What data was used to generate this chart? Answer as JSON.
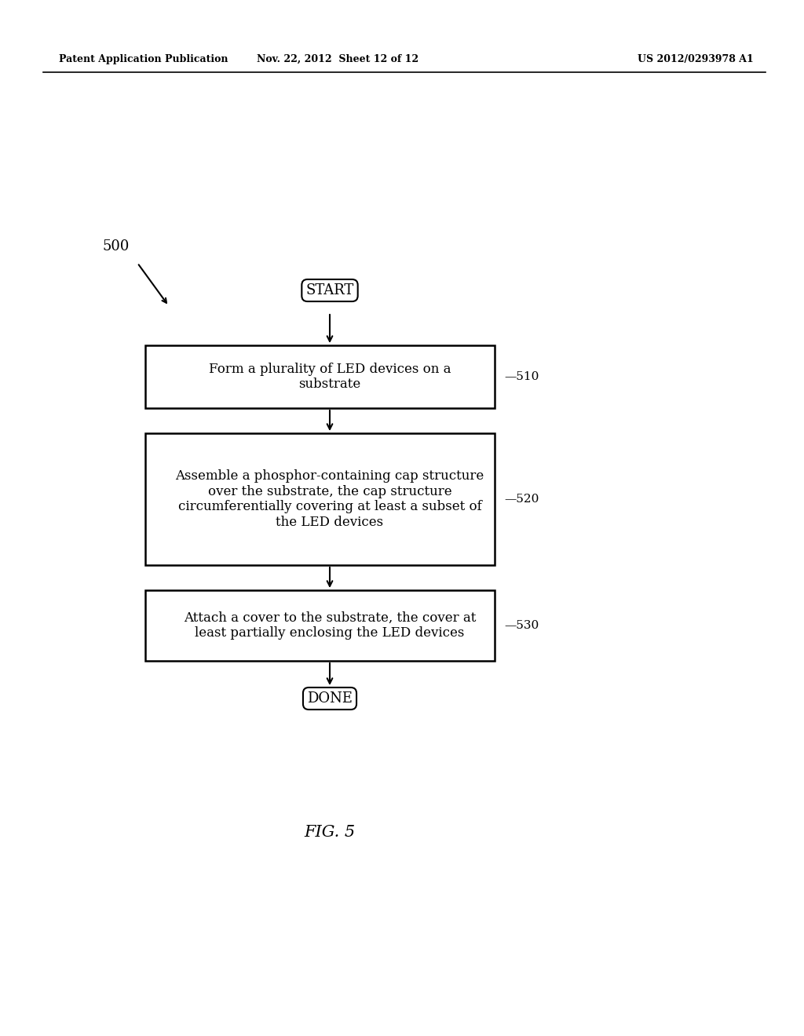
{
  "bg_color": "#ffffff",
  "header_left": "Patent Application Publication",
  "header_mid": "Nov. 22, 2012  Sheet 12 of 12",
  "header_right": "US 2012/0293978 A1",
  "fig_label": "FIG. 5",
  "diagram_label": "500",
  "start_text": "START",
  "done_text": "DONE",
  "boxes": [
    {
      "id": "510",
      "label": "510",
      "text": "Form a plurality of LED devices on a\nsubstrate"
    },
    {
      "id": "520",
      "label": "520",
      "text": "Assemble a phosphor-containing cap structure\nover the substrate, the cap structure\ncircumferentially covering at least a subset of\nthe LED devices"
    },
    {
      "id": "530",
      "label": "530",
      "text": "Attach a cover to the substrate, the cover at\nleast partially enclosing the LED devices"
    }
  ]
}
